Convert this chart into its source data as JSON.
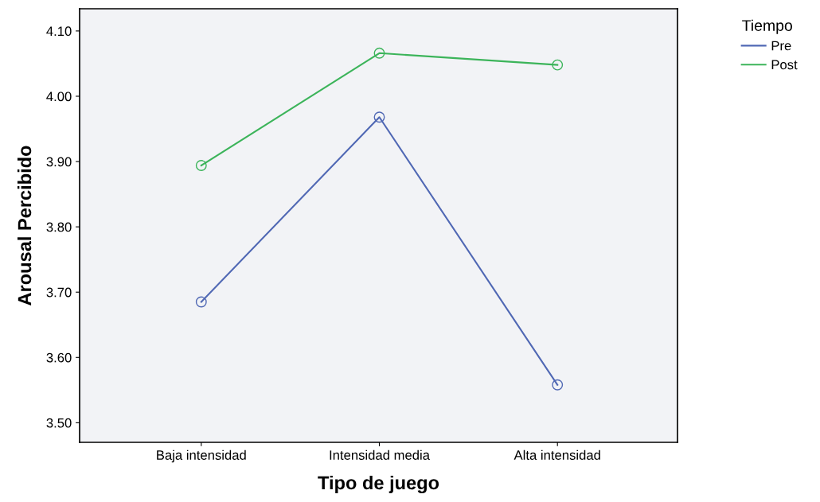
{
  "chart_data": {
    "type": "line",
    "xlabel": "Tipo de juego",
    "ylabel": "Arousal Percibido",
    "legend_title": "Tiempo",
    "legend": "top right",
    "marker": "circle",
    "line_style": "solid",
    "grid": false,
    "categories": [
      "Baja intensidad",
      "Intensidad media",
      "Alta intensidad"
    ],
    "series": [
      {
        "name": "Pre",
        "color": "#5068b4",
        "values": [
          3.685,
          3.968,
          3.558
        ]
      },
      {
        "name": "Post",
        "color": "#3cb45a",
        "values": [
          3.894,
          4.066,
          4.048
        ]
      }
    ],
    "ylim": [
      3.47,
      4.134
    ],
    "yticks": [
      {
        "value": 3.5,
        "label": "3.50"
      },
      {
        "value": 3.6,
        "label": "3.60"
      },
      {
        "value": 3.7,
        "label": "3.70"
      },
      {
        "value": 3.8,
        "label": "3.80"
      },
      {
        "value": 3.9,
        "label": "3.90"
      },
      {
        "value": 4.0,
        "label": "4.00"
      },
      {
        "value": 4.1,
        "label": "4.10"
      }
    ]
  }
}
